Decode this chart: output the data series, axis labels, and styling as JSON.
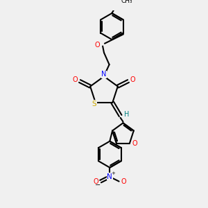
{
  "bg_color": "#f0f0f0",
  "line_color": "#000000",
  "bond_width": 1.5,
  "atom_colors": {
    "N": "#0000ff",
    "O": "#ff0000",
    "S": "#ccaa00",
    "H_vinyl": "#008080"
  }
}
